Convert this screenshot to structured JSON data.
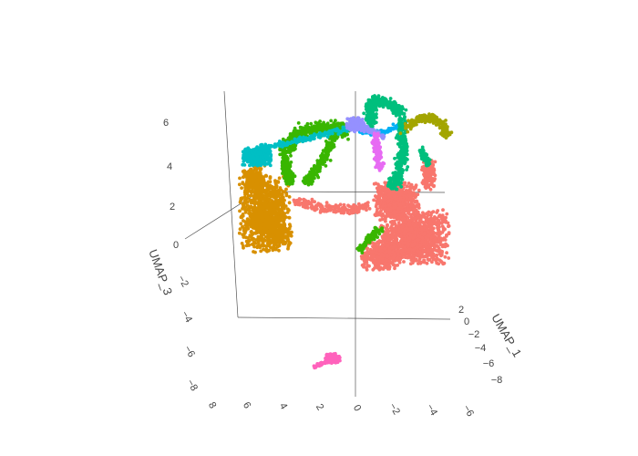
{
  "chart_data": {
    "type": "scatter",
    "title": "",
    "axes": {
      "umap_1": {
        "label": "UMAP_1",
        "ticks": [
          "2",
          "0",
          "−2",
          "−4",
          "−6",
          "−8"
        ]
      },
      "umap_2": {
        "label": "",
        "ticks": [
          "8",
          "6",
          "4",
          "2",
          "0",
          "−2",
          "−4",
          "−6"
        ]
      },
      "umap_3": {
        "label": "UMAP_3",
        "ticks": [
          "6",
          "4",
          "2",
          "0",
          "−2",
          "−4",
          "−6",
          "−8"
        ]
      }
    },
    "grid": false,
    "legend": "none",
    "series": [
      {
        "color": "#F8766D"
      },
      {
        "color": "#D89000"
      },
      {
        "color": "#A3A500"
      },
      {
        "color": "#39B600"
      },
      {
        "color": "#00BF7D"
      },
      {
        "color": "#00BFC4"
      },
      {
        "color": "#00B0F6"
      },
      {
        "color": "#9590FF"
      },
      {
        "color": "#E76BF3"
      },
      {
        "color": "#FF62BC"
      }
    ]
  }
}
